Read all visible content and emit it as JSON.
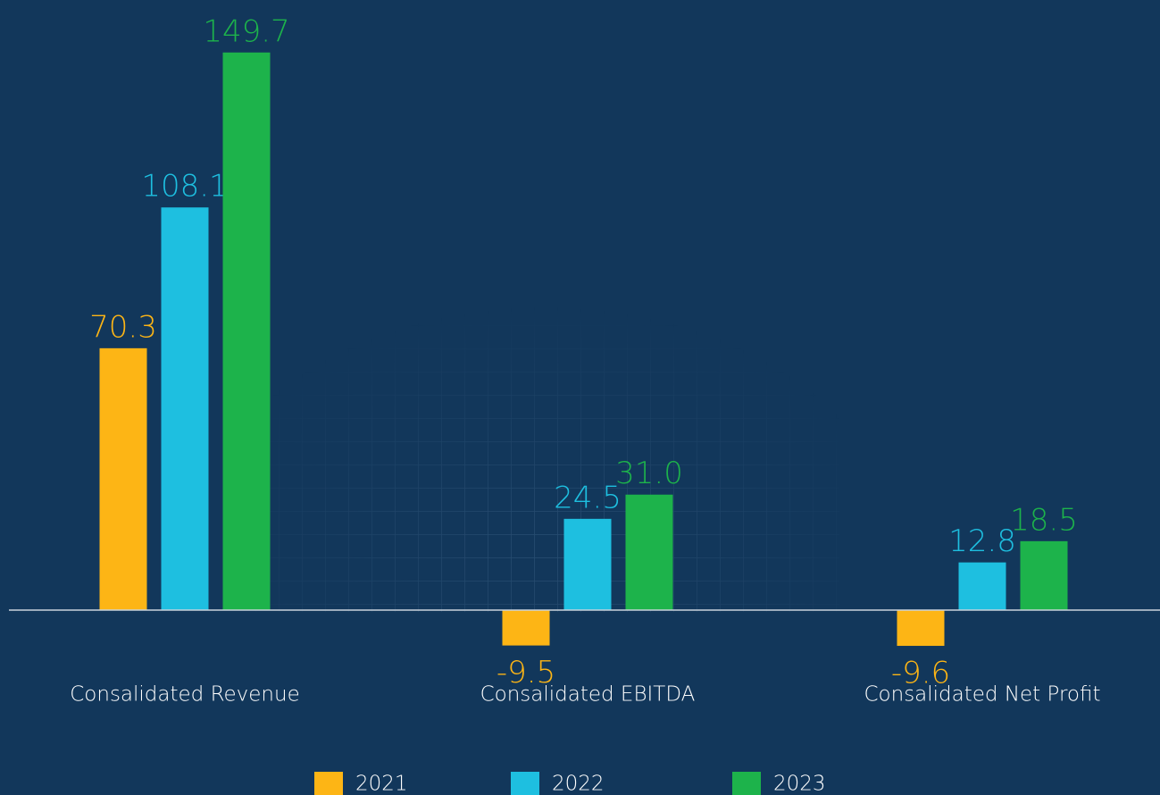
{
  "chart_data": {
    "type": "bar",
    "categories": [
      "Consalidated Revenue",
      "Consalidated EBITDA",
      "Consalidated Net Profit"
    ],
    "series": [
      {
        "name": "2021",
        "color": "#fdb515",
        "values": [
          70.3,
          -9.5,
          -9.6
        ],
        "value_labels": [
          "70.3",
          "-9.5",
          "-9.6"
        ]
      },
      {
        "name": "2022",
        "color": "#1ebfe0",
        "values": [
          108.1,
          24.5,
          12.8
        ],
        "value_labels": [
          "108.1",
          "24.5",
          "12.8"
        ]
      },
      {
        "name": "2023",
        "color": "#1db34b",
        "values": [
          149.7,
          31.0,
          18.5
        ],
        "value_labels": [
          "149.7",
          "31.0",
          "18.5"
        ]
      }
    ],
    "legend": "bottom"
  }
}
